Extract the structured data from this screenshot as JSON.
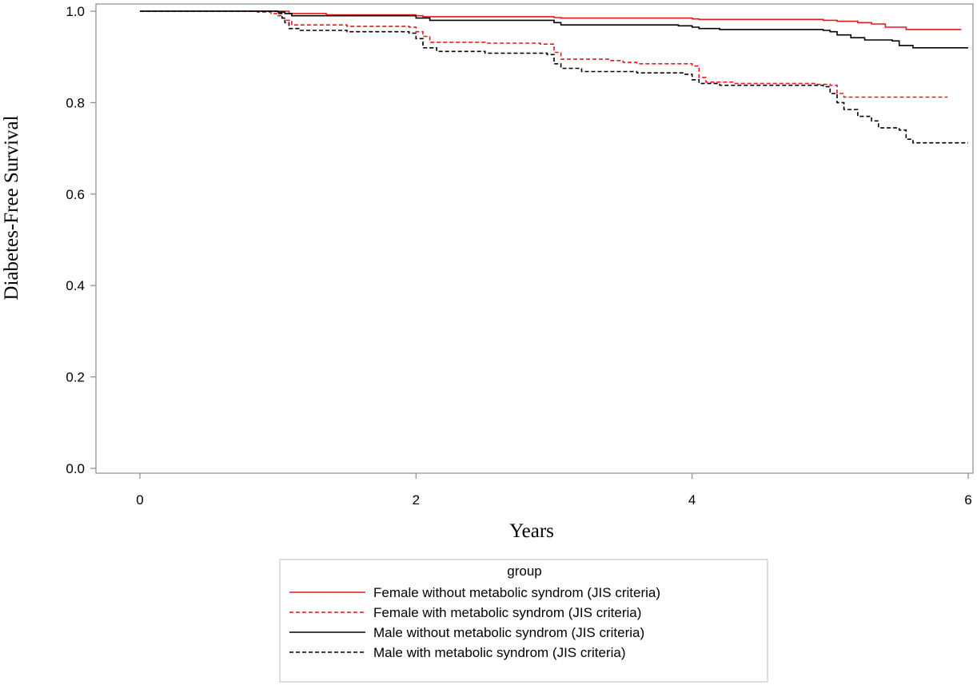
{
  "chart_data": {
    "type": "line",
    "title": "",
    "xlabel": "Years",
    "ylabel": "Diabetes-Free Survival",
    "xlim": [
      0,
      6
    ],
    "ylim": [
      0,
      1
    ],
    "x_ticks": [
      "0",
      "2",
      "4",
      "6"
    ],
    "y_ticks": [
      "0.0",
      "0.2",
      "0.4",
      "0.6",
      "0.8",
      "1.0"
    ],
    "grid": false,
    "legend": {
      "title": "group",
      "position": "bottom-center"
    },
    "series": [
      {
        "name": "Female without metabolic syndrom (JIS criteria)",
        "color": "#e8171c",
        "dash": "solid",
        "points": [
          [
            0,
            1.0
          ],
          [
            0.95,
            1.0
          ],
          [
            1.08,
            0.995
          ],
          [
            1.35,
            0.992
          ],
          [
            2.0,
            0.99
          ],
          [
            2.05,
            0.988
          ],
          [
            3.0,
            0.986
          ],
          [
            3.05,
            0.985
          ],
          [
            4.0,
            0.983
          ],
          [
            4.05,
            0.982
          ],
          [
            4.95,
            0.98
          ],
          [
            5.05,
            0.978
          ],
          [
            5.2,
            0.975
          ],
          [
            5.3,
            0.972
          ],
          [
            5.4,
            0.965
          ],
          [
            5.55,
            0.96
          ],
          [
            5.95,
            0.96
          ]
        ]
      },
      {
        "name": "Female with metabolic syndrom (JIS criteria)",
        "color": "#e8171c",
        "dash": "dashed",
        "points": [
          [
            0.8,
            1.0
          ],
          [
            0.85,
            0.998
          ],
          [
            0.95,
            0.995
          ],
          [
            1.0,
            0.99
          ],
          [
            1.03,
            0.985
          ],
          [
            1.05,
            0.98
          ],
          [
            1.1,
            0.97
          ],
          [
            1.5,
            0.967
          ],
          [
            1.95,
            0.965
          ],
          [
            2.0,
            0.955
          ],
          [
            2.05,
            0.945
          ],
          [
            2.1,
            0.932
          ],
          [
            2.5,
            0.93
          ],
          [
            2.9,
            0.928
          ],
          [
            3.0,
            0.91
          ],
          [
            3.05,
            0.895
          ],
          [
            3.4,
            0.892
          ],
          [
            3.5,
            0.888
          ],
          [
            3.6,
            0.885
          ],
          [
            4.0,
            0.88
          ],
          [
            4.05,
            0.855
          ],
          [
            4.1,
            0.845
          ],
          [
            4.3,
            0.842
          ],
          [
            4.9,
            0.84
          ],
          [
            5.0,
            0.838
          ],
          [
            5.05,
            0.82
          ],
          [
            5.1,
            0.812
          ],
          [
            5.85,
            0.812
          ]
        ]
      },
      {
        "name": "Male without metabolic syndrom (JIS criteria)",
        "color": "#000000",
        "dash": "solid",
        "points": [
          [
            0,
            1.0
          ],
          [
            0.95,
            1.0
          ],
          [
            1.0,
            0.998
          ],
          [
            1.05,
            0.995
          ],
          [
            1.1,
            0.99
          ],
          [
            1.9,
            0.99
          ],
          [
            2.0,
            0.985
          ],
          [
            2.1,
            0.98
          ],
          [
            2.95,
            0.98
          ],
          [
            3.0,
            0.975
          ],
          [
            3.05,
            0.97
          ],
          [
            3.9,
            0.968
          ],
          [
            4.0,
            0.965
          ],
          [
            4.05,
            0.962
          ],
          [
            4.2,
            0.96
          ],
          [
            4.95,
            0.958
          ],
          [
            5.0,
            0.955
          ],
          [
            5.05,
            0.948
          ],
          [
            5.15,
            0.942
          ],
          [
            5.25,
            0.937
          ],
          [
            5.45,
            0.935
          ],
          [
            5.5,
            0.925
          ],
          [
            5.6,
            0.92
          ],
          [
            6.0,
            0.92
          ]
        ]
      },
      {
        "name": "Male with metabolic syndrom (JIS criteria)",
        "color": "#000000",
        "dash": "dashed",
        "points": [
          [
            0,
            1.0
          ],
          [
            0.9,
            1.0
          ],
          [
            1.0,
            0.995
          ],
          [
            1.03,
            0.985
          ],
          [
            1.05,
            0.975
          ],
          [
            1.08,
            0.962
          ],
          [
            1.15,
            0.958
          ],
          [
            1.5,
            0.955
          ],
          [
            1.95,
            0.952
          ],
          [
            2.0,
            0.94
          ],
          [
            2.05,
            0.92
          ],
          [
            2.15,
            0.912
          ],
          [
            2.5,
            0.908
          ],
          [
            2.95,
            0.905
          ],
          [
            3.0,
            0.885
          ],
          [
            3.05,
            0.875
          ],
          [
            3.2,
            0.868
          ],
          [
            3.6,
            0.865
          ],
          [
            3.95,
            0.862
          ],
          [
            4.0,
            0.85
          ],
          [
            4.05,
            0.842
          ],
          [
            4.2,
            0.838
          ],
          [
            4.95,
            0.835
          ],
          [
            5.0,
            0.82
          ],
          [
            5.05,
            0.8
          ],
          [
            5.1,
            0.785
          ],
          [
            5.2,
            0.77
          ],
          [
            5.3,
            0.76
          ],
          [
            5.35,
            0.745
          ],
          [
            5.5,
            0.74
          ],
          [
            5.55,
            0.72
          ],
          [
            5.6,
            0.712
          ],
          [
            6.0,
            0.712
          ]
        ]
      }
    ]
  }
}
